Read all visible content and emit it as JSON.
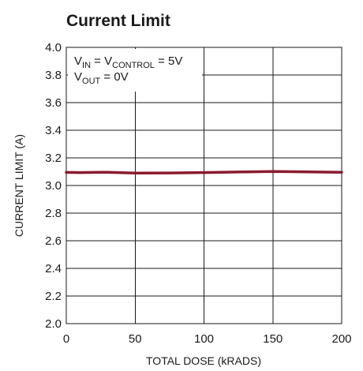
{
  "chart_data": {
    "type": "line",
    "title": "Current Limit",
    "xlabel": "TOTAL DOSE (kRADS)",
    "ylabel": "CURRENT LIMIT (A)",
    "xlim": [
      0,
      200
    ],
    "ylim": [
      2.0,
      4.0
    ],
    "x_ticks": [
      "0",
      "50",
      "100",
      "150",
      "200"
    ],
    "y_ticks": [
      "2.0",
      "2.2",
      "2.4",
      "2.6",
      "2.8",
      "3.0",
      "3.2",
      "3.4",
      "3.6",
      "3.8",
      "4.0"
    ],
    "grid": true,
    "annotation": {
      "line1": {
        "v_main": "V",
        "in_sub": "IN",
        "eq1": " = V",
        "control_sub": "CONTROL",
        "eq2": " = 5V"
      },
      "line2": {
        "v_main": "V",
        "out_sub": "OUT",
        "eq": " = 0V"
      }
    },
    "series": [
      {
        "color": "#8b1a2e",
        "x": [
          0,
          10,
          20,
          30,
          40,
          50,
          75,
          100,
          125,
          150,
          175,
          200
        ],
        "y": [
          3.095,
          3.094,
          3.095,
          3.096,
          3.093,
          3.09,
          3.091,
          3.094,
          3.098,
          3.101,
          3.099,
          3.096
        ]
      }
    ]
  }
}
